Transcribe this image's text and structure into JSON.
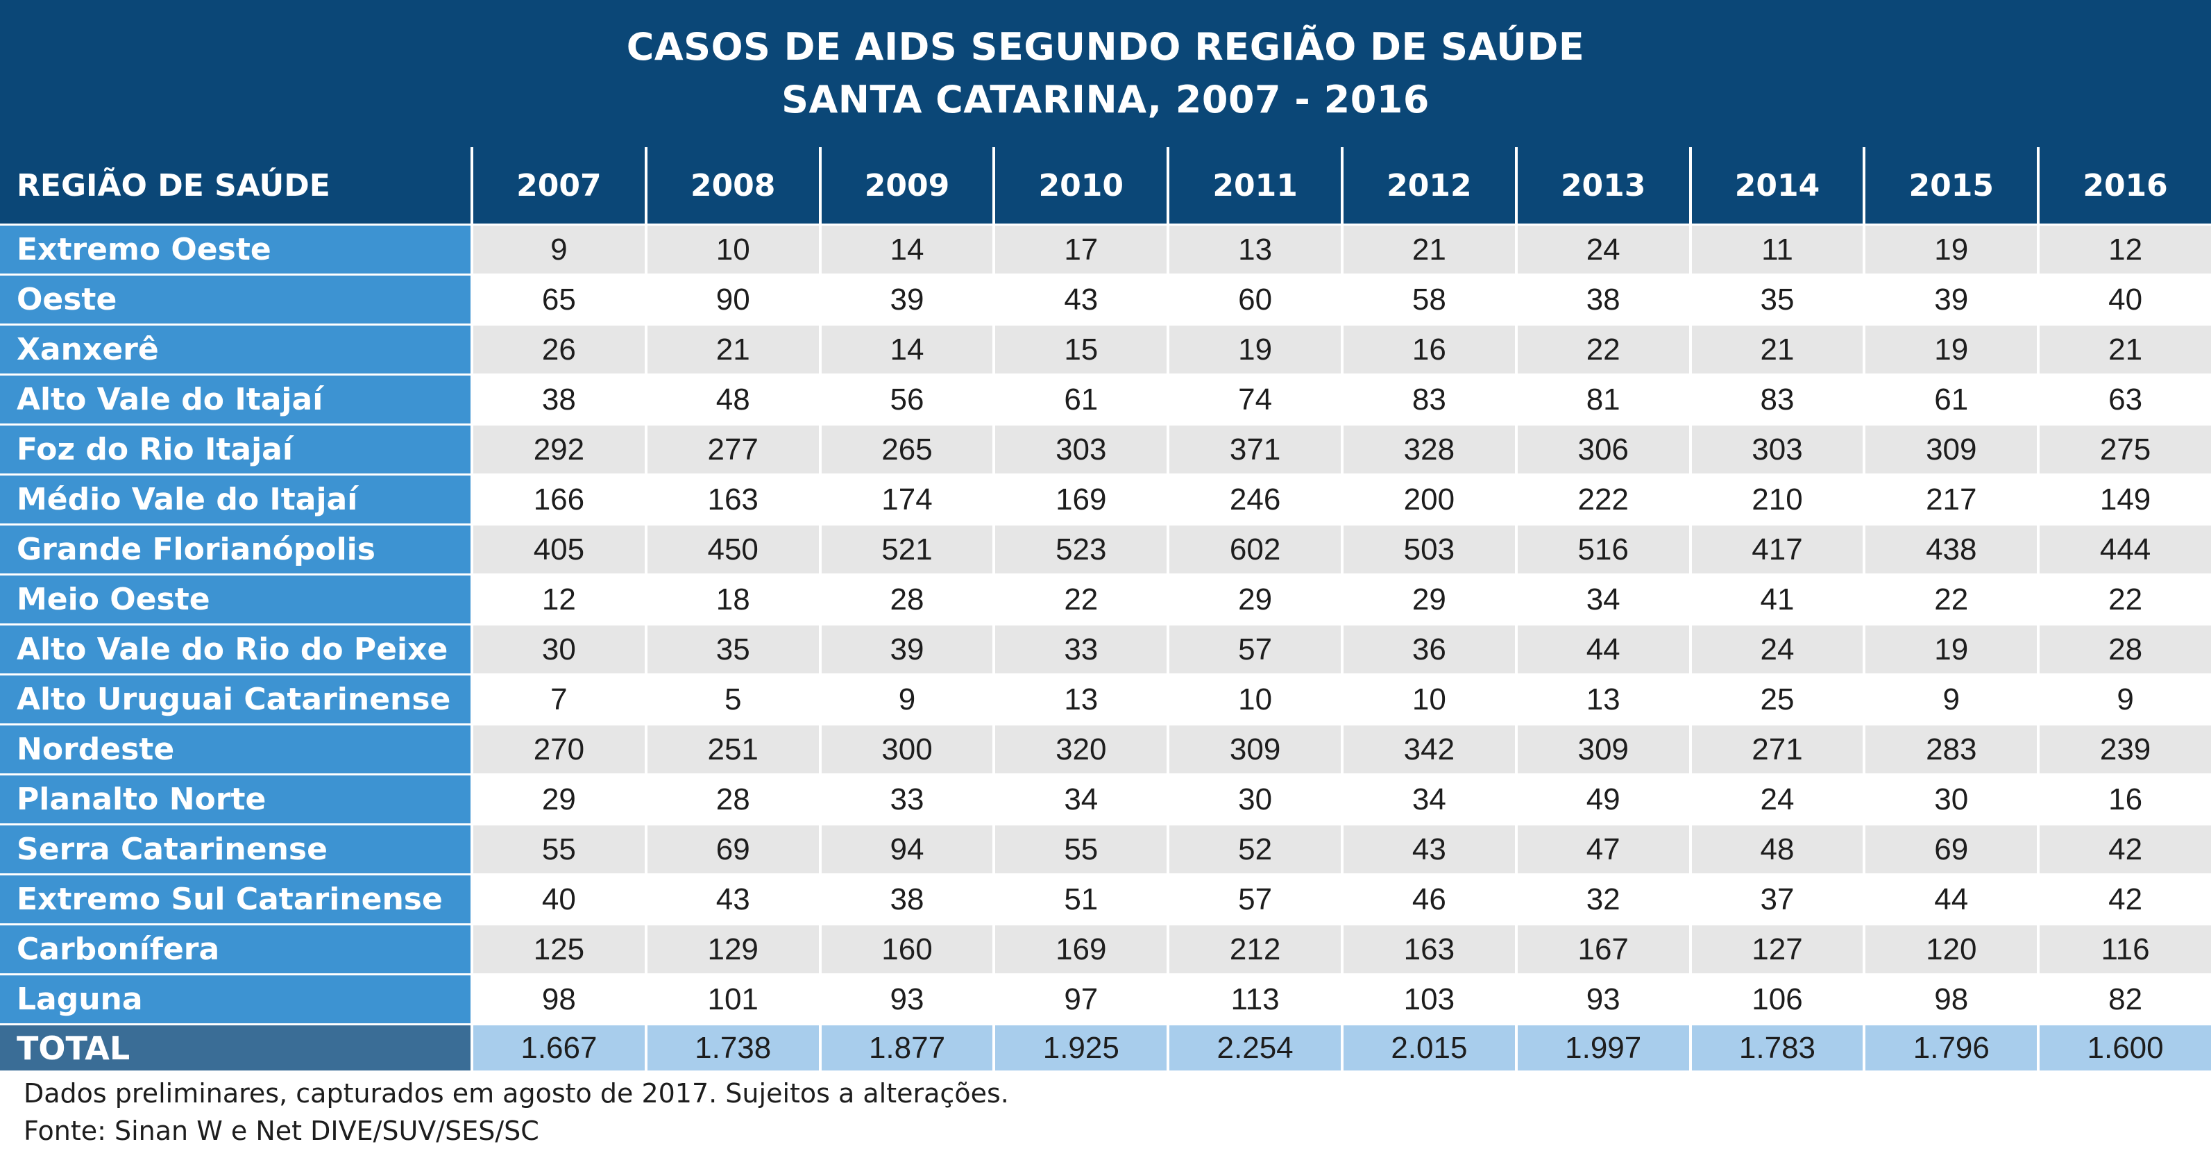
{
  "chart_data": {
    "type": "table",
    "title": "CASOS DE AIDS SEGUNDO REGIÃO DE SAÚDE",
    "subtitle": "SANTA CATARINA, 2007 - 2016",
    "row_header": "REGIÃO DE SAÚDE",
    "columns": [
      "2007",
      "2008",
      "2009",
      "2010",
      "2011",
      "2012",
      "2013",
      "2014",
      "2015",
      "2016"
    ],
    "rows": [
      {
        "name": "Extremo Oeste",
        "values": [
          "9",
          "10",
          "14",
          "17",
          "13",
          "21",
          "24",
          "11",
          "19",
          "12"
        ]
      },
      {
        "name": "Oeste",
        "values": [
          "65",
          "90",
          "39",
          "43",
          "60",
          "58",
          "38",
          "35",
          "39",
          "40"
        ]
      },
      {
        "name": "Xanxerê",
        "values": [
          "26",
          "21",
          "14",
          "15",
          "19",
          "16",
          "22",
          "21",
          "19",
          "21"
        ]
      },
      {
        "name": "Alto Vale do Itajaí",
        "values": [
          "38",
          "48",
          "56",
          "61",
          "74",
          "83",
          "81",
          "83",
          "61",
          "63"
        ]
      },
      {
        "name": "Foz do Rio Itajaí",
        "values": [
          "292",
          "277",
          "265",
          "303",
          "371",
          "328",
          "306",
          "303",
          "309",
          "275"
        ]
      },
      {
        "name": "Médio Vale do Itajaí",
        "values": [
          "166",
          "163",
          "174",
          "169",
          "246",
          "200",
          "222",
          "210",
          "217",
          "149"
        ]
      },
      {
        "name": "Grande Florianópolis",
        "values": [
          "405",
          "450",
          "521",
          "523",
          "602",
          "503",
          "516",
          "417",
          "438",
          "444"
        ]
      },
      {
        "name": "Meio Oeste",
        "values": [
          "12",
          "18",
          "28",
          "22",
          "29",
          "29",
          "34",
          "41",
          "22",
          "22"
        ]
      },
      {
        "name": "Alto Vale do Rio do Peixe",
        "values": [
          "30",
          "35",
          "39",
          "33",
          "57",
          "36",
          "44",
          "24",
          "19",
          "28"
        ]
      },
      {
        "name": "Alto Uruguai Catarinense",
        "values": [
          "7",
          "5",
          "9",
          "13",
          "10",
          "10",
          "13",
          "25",
          "9",
          "9"
        ]
      },
      {
        "name": "Nordeste",
        "values": [
          "270",
          "251",
          "300",
          "320",
          "309",
          "342",
          "309",
          "271",
          "283",
          "239"
        ]
      },
      {
        "name": "Planalto Norte",
        "values": [
          "29",
          "28",
          "33",
          "34",
          "30",
          "34",
          "49",
          "24",
          "30",
          "16"
        ]
      },
      {
        "name": "Serra Catarinense",
        "values": [
          "55",
          "69",
          "94",
          "55",
          "52",
          "43",
          "47",
          "48",
          "69",
          "42"
        ]
      },
      {
        "name": "Extremo Sul Catarinense",
        "values": [
          "40",
          "43",
          "38",
          "51",
          "57",
          "46",
          "32",
          "37",
          "44",
          "42"
        ]
      },
      {
        "name": "Carbonífera",
        "values": [
          "125",
          "129",
          "160",
          "169",
          "212",
          "163",
          "167",
          "127",
          "120",
          "116"
        ]
      },
      {
        "name": "Laguna",
        "values": [
          "98",
          "101",
          "93",
          "97",
          "113",
          "103",
          "93",
          "106",
          "98",
          "82"
        ]
      }
    ],
    "total": {
      "name": "TOTAL",
      "values": [
        "1.667",
        "1.738",
        "1.877",
        "1.925",
        "2.254",
        "2.015",
        "1.997",
        "1.783",
        "1.796",
        "1.600"
      ]
    }
  },
  "notes": [
    "Dados preliminares, capturados em agosto de 2017. Sujeitos a alterações.",
    "Fonte: Sinan W e Net DIVE/SUV/SES/SC"
  ],
  "colors": {
    "header": "#0b4777",
    "row_label": "#3d93d2",
    "row_alt": "#e6e6e6",
    "total_label": "#3a6d96",
    "total_cell": "#a8cdec"
  }
}
